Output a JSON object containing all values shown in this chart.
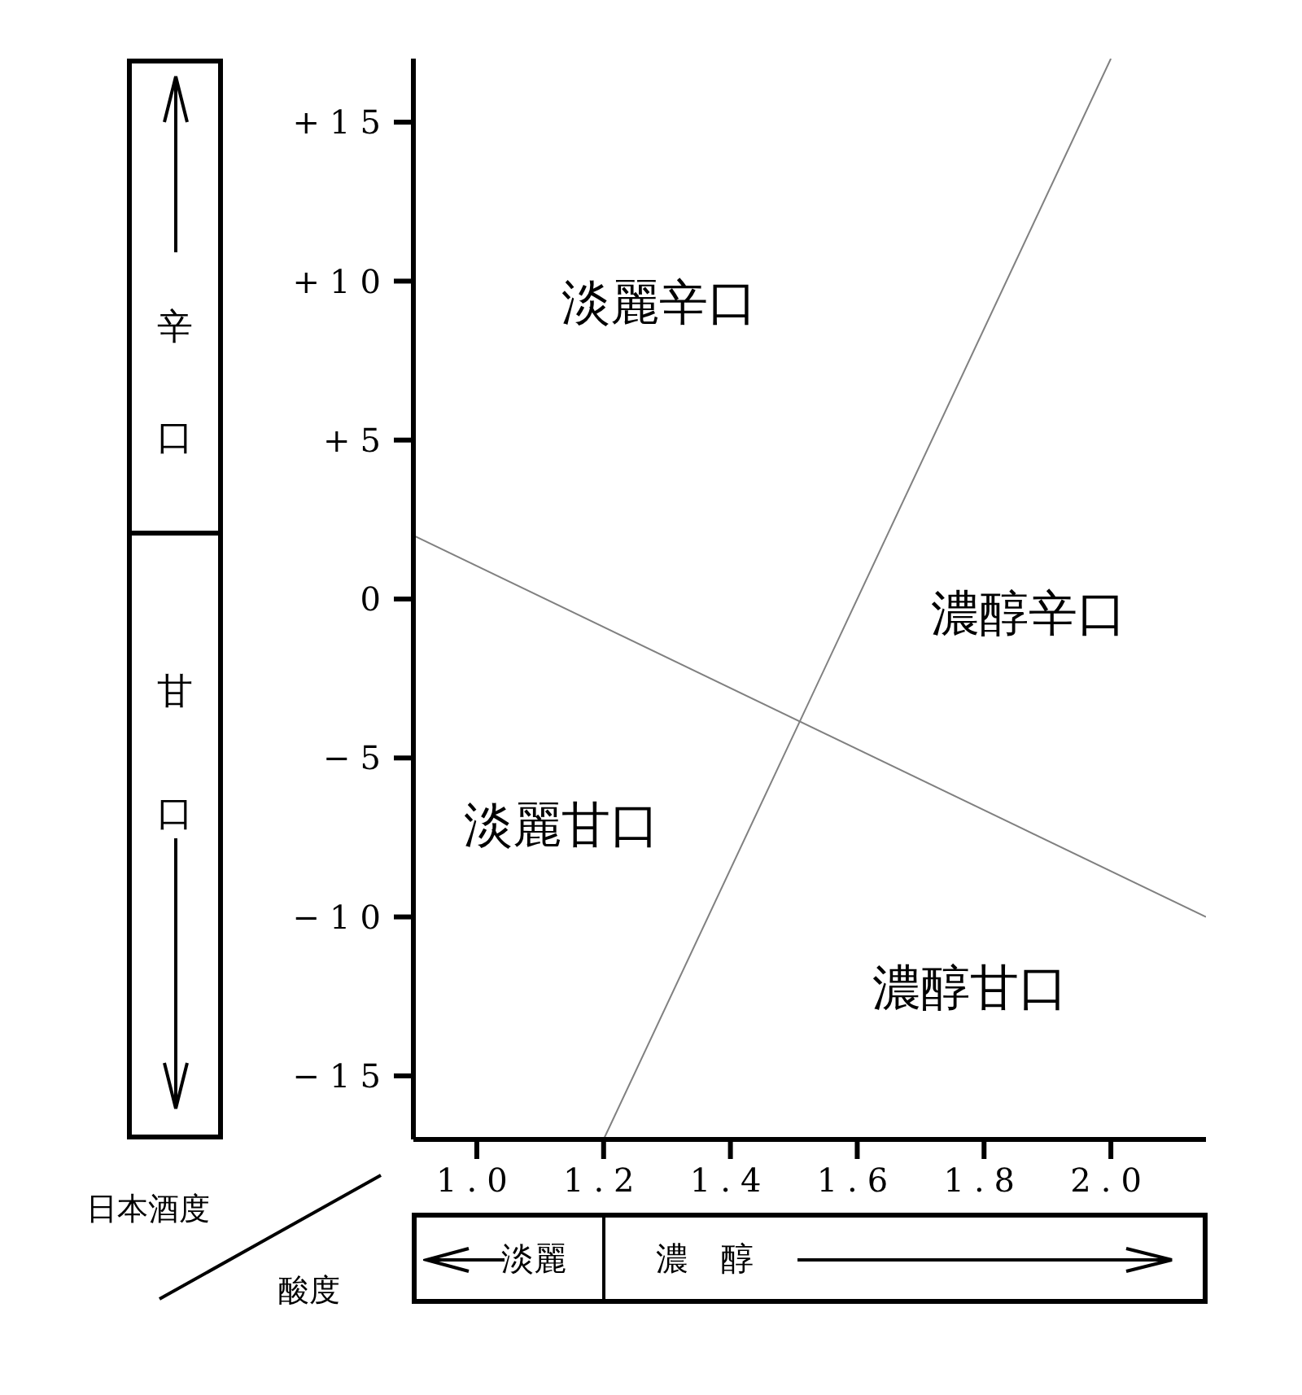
{
  "chart_data": {
    "type": "line",
    "xlabel": "酸度",
    "ylabel": "日本酒度",
    "xlim": [
      0.9,
      2.15
    ],
    "ylim": [
      -17,
      17
    ],
    "xticks": [
      {
        "value": 1.0,
        "label": "1.0"
      },
      {
        "value": 1.2,
        "label": "1.2"
      },
      {
        "value": 1.4,
        "label": "1.4"
      },
      {
        "value": 1.6,
        "label": "1.6"
      },
      {
        "value": 1.8,
        "label": "1.8"
      },
      {
        "value": 2.0,
        "label": "2.0"
      }
    ],
    "yticks": [
      {
        "value": 15,
        "label": "+15"
      },
      {
        "value": 10,
        "label": "+10"
      },
      {
        "value": 5,
        "label": "+5"
      },
      {
        "value": 0,
        "label": "0"
      },
      {
        "value": -5,
        "label": "−5"
      },
      {
        "value": -10,
        "label": "−10"
      },
      {
        "value": -15,
        "label": "−15"
      }
    ],
    "marker": "none",
    "line_style": "solid",
    "series": [
      {
        "color": "#808080",
        "x": [
          1.2,
          2.0
        ],
        "values": [
          -17,
          17
        ]
      },
      {
        "color": "#808080",
        "x": [
          0.9,
          2.15
        ],
        "values": [
          2,
          -10
        ]
      }
    ],
    "annotations": [
      "淡麗辛口",
      "濃醇辛口",
      "淡麗甘口",
      "濃醇甘口",
      "辛口",
      "甘口",
      "淡麗",
      "濃　醇"
    ]
  }
}
